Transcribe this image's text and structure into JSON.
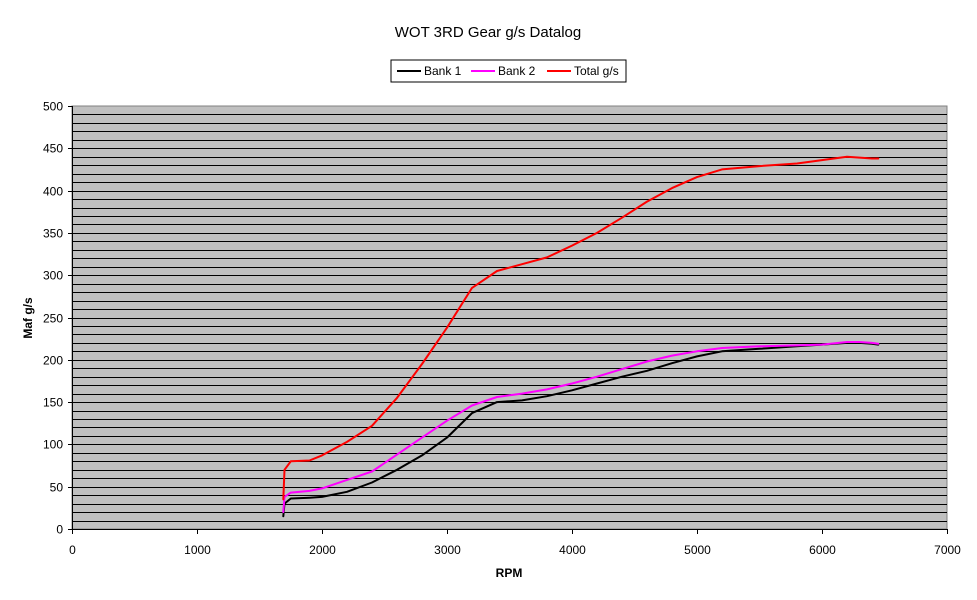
{
  "chart_data": {
    "type": "line",
    "title": "WOT 3RD Gear g/s Datalog",
    "xlabel": "RPM",
    "ylabel": "Maf g/s",
    "xlim": [
      0,
      7000
    ],
    "ylim": [
      0,
      500
    ],
    "x_ticks": [
      0,
      1000,
      2000,
      3000,
      4000,
      5000,
      6000,
      7000
    ],
    "y_ticks": [
      0,
      50,
      100,
      150,
      200,
      250,
      300,
      350,
      400,
      450,
      500
    ],
    "grid": "horizontal",
    "minor_grid_step": 10,
    "plot_background": "#c0c0c0",
    "legend_position": "top-center",
    "series": [
      {
        "name": "Bank 1",
        "color": "#000000",
        "points": [
          [
            1690,
            15
          ],
          [
            1700,
            30
          ],
          [
            1750,
            36
          ],
          [
            1900,
            37
          ],
          [
            2000,
            38
          ],
          [
            2200,
            44
          ],
          [
            2400,
            55
          ],
          [
            2600,
            70
          ],
          [
            2800,
            87
          ],
          [
            3000,
            108
          ],
          [
            3200,
            137
          ],
          [
            3400,
            150
          ],
          [
            3600,
            152
          ],
          [
            3800,
            157
          ],
          [
            4000,
            164
          ],
          [
            4200,
            172
          ],
          [
            4400,
            180
          ],
          [
            4600,
            187
          ],
          [
            4800,
            196
          ],
          [
            5000,
            204
          ],
          [
            5200,
            210
          ],
          [
            5500,
            213
          ],
          [
            5800,
            216
          ],
          [
            6000,
            218
          ],
          [
            6200,
            220
          ],
          [
            6300,
            220
          ],
          [
            6400,
            219
          ],
          [
            6450,
            218
          ]
        ]
      },
      {
        "name": "Bank 2",
        "color": "#ff00ff",
        "points": [
          [
            1690,
            20
          ],
          [
            1700,
            38
          ],
          [
            1750,
            43
          ],
          [
            1900,
            45
          ],
          [
            2000,
            48
          ],
          [
            2200,
            58
          ],
          [
            2400,
            68
          ],
          [
            2600,
            88
          ],
          [
            2800,
            108
          ],
          [
            3000,
            128
          ],
          [
            3200,
            146
          ],
          [
            3400,
            156
          ],
          [
            3600,
            160
          ],
          [
            3800,
            165
          ],
          [
            4000,
            172
          ],
          [
            4200,
            180
          ],
          [
            4400,
            189
          ],
          [
            4600,
            198
          ],
          [
            4800,
            205
          ],
          [
            5000,
            210
          ],
          [
            5200,
            214
          ],
          [
            5500,
            216
          ],
          [
            5800,
            217
          ],
          [
            6000,
            218
          ],
          [
            6200,
            221
          ],
          [
            6300,
            221
          ],
          [
            6400,
            220
          ],
          [
            6450,
            219
          ]
        ]
      },
      {
        "name": "Total g/s",
        "color": "#ff0000",
        "points": [
          [
            1690,
            35
          ],
          [
            1700,
            70
          ],
          [
            1750,
            80
          ],
          [
            1900,
            81
          ],
          [
            2000,
            87
          ],
          [
            2200,
            103
          ],
          [
            2400,
            122
          ],
          [
            2600,
            155
          ],
          [
            2800,
            195
          ],
          [
            3000,
            238
          ],
          [
            3200,
            285
          ],
          [
            3400,
            305
          ],
          [
            3600,
            313
          ],
          [
            3800,
            321
          ],
          [
            4000,
            335
          ],
          [
            4200,
            350
          ],
          [
            4400,
            368
          ],
          [
            4600,
            387
          ],
          [
            4800,
            403
          ],
          [
            5000,
            416
          ],
          [
            5200,
            425
          ],
          [
            5500,
            429
          ],
          [
            5800,
            432
          ],
          [
            6000,
            436
          ],
          [
            6200,
            440
          ],
          [
            6300,
            439
          ],
          [
            6400,
            438
          ],
          [
            6450,
            438
          ]
        ]
      }
    ]
  }
}
